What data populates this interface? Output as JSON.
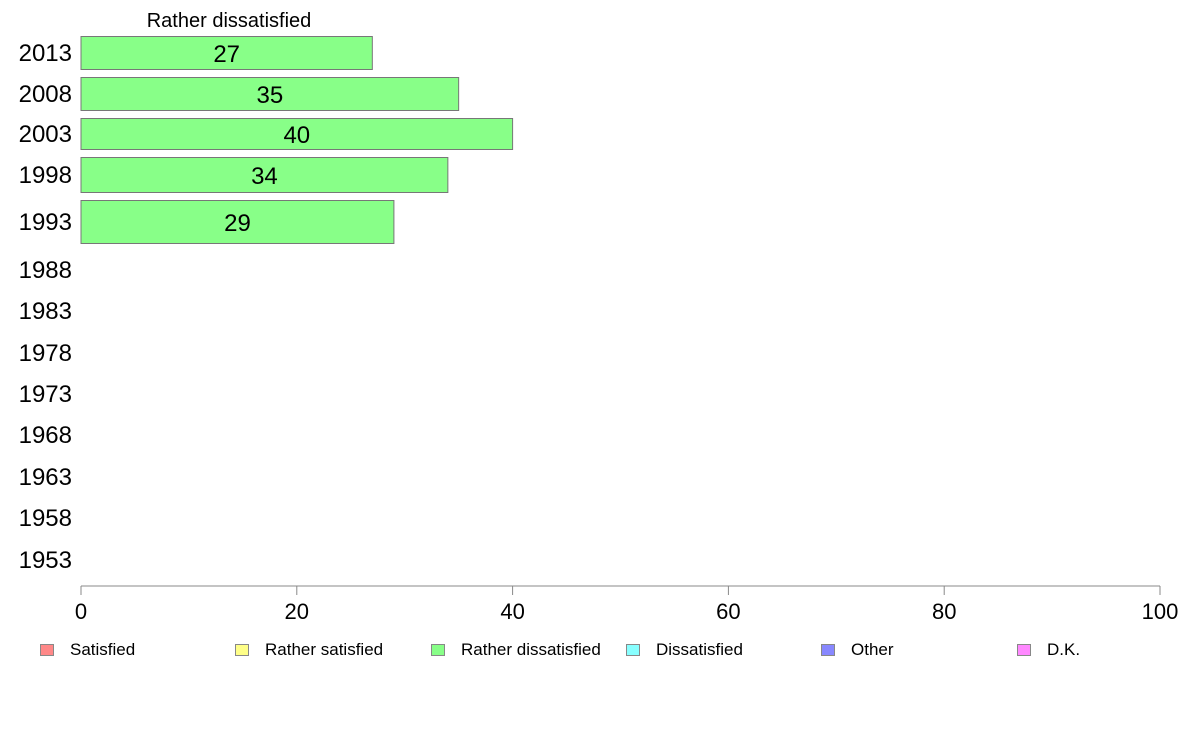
{
  "chart_data": {
    "type": "bar",
    "orientation": "horizontal",
    "title": "Rather dissatisfied",
    "categories": [
      "2013",
      "2008",
      "2003",
      "1998",
      "1993",
      "1988",
      "1983",
      "1978",
      "1973",
      "1968",
      "1963",
      "1958",
      "1953"
    ],
    "series": [
      {
        "name": "Rather dissatisfied",
        "values": [
          27,
          35,
          40,
          34,
          29,
          null,
          null,
          null,
          null,
          null,
          null,
          null,
          null
        ],
        "labels": [
          "27",
          "35",
          "40",
          "34",
          "29",
          "",
          "",
          "",
          "",
          "",
          "",
          "",
          ""
        ],
        "color": "#88ff88"
      }
    ],
    "xlim": [
      0,
      100
    ],
    "xticks": [
      "0",
      "20",
      "40",
      "60",
      "80",
      "100"
    ],
    "grid": false,
    "legend_placement": "bottom"
  },
  "legend": {
    "items": [
      {
        "label": "Satisfied",
        "color": "#ff8888"
      },
      {
        "label": "Rather satisfied",
        "color": "#ffff88"
      },
      {
        "label": "Rather dissatisfied",
        "color": "#88ff88"
      },
      {
        "label": "Dissatisfied",
        "color": "#88ffff"
      },
      {
        "label": "Other",
        "color": "#8888ff"
      },
      {
        "label": "D.K.",
        "color": "#ff88ff"
      }
    ]
  }
}
